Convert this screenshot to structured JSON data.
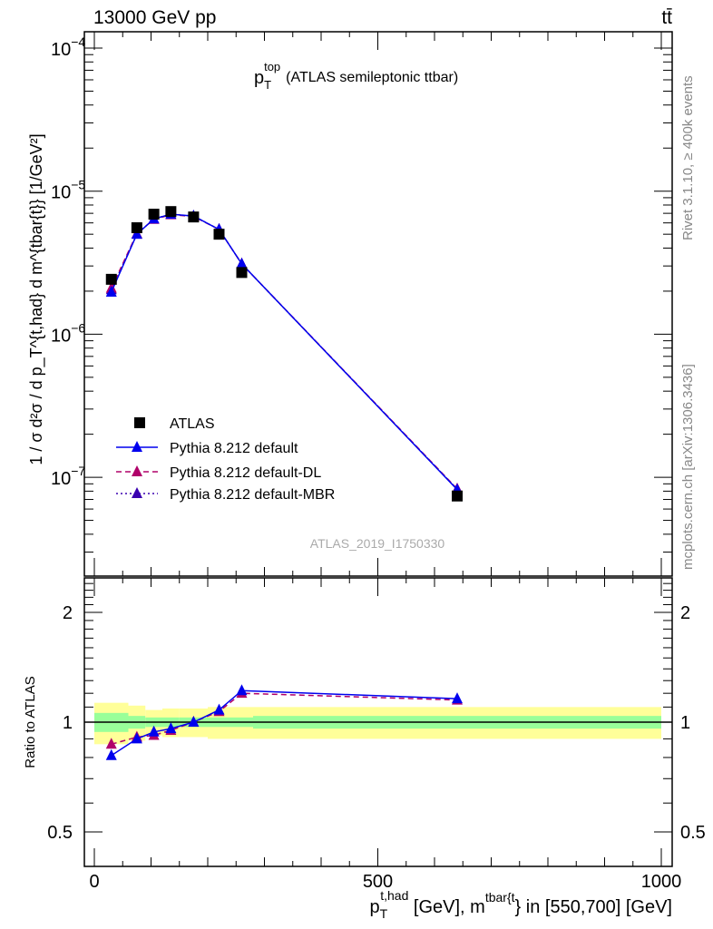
{
  "header": {
    "left": "13000 GeV pp",
    "right": "tt̄"
  },
  "side_labels": {
    "rivet": "Rivet 3.1.10, ≥ 400k events",
    "mcplots": "mcplots.cern.ch [arXiv:1306.3436]"
  },
  "chart_data": [
    {
      "type": "line",
      "title": "p_T^top (ATLAS semileptonic ttbar)",
      "title_main": "p",
      "title_sub": "T",
      "title_sup": "top",
      "title_rest": "(ATLAS semileptonic ttbar)",
      "ylabel": "1 / σ d²σ / d p_T^{t,had} d m^{tbar{t}} [1/GeV²]",
      "yscale": "log",
      "ylim": [
        2.2e-08,
        0.00013
      ],
      "xlim": [
        -40,
        1020
      ],
      "ytick_labels": [
        {
          "v": 0.0001,
          "m": "10",
          "e": "−4"
        },
        {
          "v": 1e-05,
          "m": "10",
          "e": "−5"
        },
        {
          "v": 1e-06,
          "m": "10",
          "e": "−6"
        },
        {
          "v": 1e-07,
          "m": "10",
          "e": "−7"
        }
      ],
      "watermark": "ATLAS_2019_I1750330",
      "legend_position": "middle-left",
      "x": [
        30,
        75,
        105,
        135,
        175,
        220,
        260,
        640
      ],
      "series": [
        {
          "name": "ATLAS",
          "color": "#000000",
          "marker": "square",
          "values": [
            2.42e-06,
            5.55e-06,
            6.9e-06,
            7.2e-06,
            6.6e-06,
            5e-06,
            2.7e-06,
            7.4e-08
          ]
        },
        {
          "name": "Pythia 8.212 default",
          "color": "#0000ee",
          "marker": "triangle",
          "line": "solid",
          "values": [
            1.97e-06,
            5e-06,
            6.4e-06,
            6.9e-06,
            6.7e-06,
            5.4e-06,
            3.1e-06,
            8.2e-08
          ]
        },
        {
          "name": "Pythia 8.212 default-DL",
          "color": "#b0006a",
          "marker": "triangle",
          "line": "dashed",
          "values": [
            2.1e-06,
            5.05e-06,
            6.35e-06,
            6.85e-06,
            6.65e-06,
            5.4e-06,
            3.1e-06,
            8.3e-08
          ]
        },
        {
          "name": "Pythia 8.212 default-MBR",
          "color": "#3a00b0",
          "marker": "triangle",
          "line": "dotted",
          "values": [
            2.05e-06,
            5e-06,
            6.4e-06,
            6.9e-06,
            6.7e-06,
            5.4e-06,
            3.1e-06,
            8.25e-08
          ]
        }
      ]
    },
    {
      "type": "line",
      "ylabel": "Ratio to ATLAS",
      "yscale": "log",
      "ylim": [
        0.4,
        2.5
      ],
      "xlim": [
        -40,
        1020
      ],
      "ytick_labels": [
        "0.5",
        "1",
        "2"
      ],
      "ytick_values": [
        0.5,
        1,
        2
      ],
      "xtick_labels": [
        "0",
        "500",
        "1000"
      ],
      "xtick_values": [
        0,
        500,
        1000
      ],
      "xlabel": "p_T^{t,had} [GeV], m^{tbar{t}} in [550,700] [GeV]",
      "xlabel_parts": {
        "p": "p",
        "sub": "T",
        "sup": "t,had",
        "mid": " [GeV], m",
        "sup2": "tbar{t",
        "rest": "} in [550,700] [GeV]"
      },
      "bin_edges": [
        0,
        60,
        90,
        120,
        150,
        200,
        240,
        280,
        1000
      ],
      "band_yellow_halfwidth": [
        0.13,
        0.11,
        0.08,
        0.09,
        0.09,
        0.1,
        0.1,
        0.1
      ],
      "band_green_halfwidth": [
        0.06,
        0.04,
        0.03,
        0.03,
        0.03,
        0.03,
        0.03,
        0.04
      ],
      "x": [
        30,
        75,
        105,
        135,
        175,
        220,
        260,
        640
      ],
      "series": [
        {
          "name": "Pythia 8.212 default",
          "color": "#0000ee",
          "line": "solid",
          "values": [
            0.81,
            0.9,
            0.94,
            0.96,
            1.0,
            1.08,
            1.22,
            1.16
          ],
          "errors": [
            0.02,
            0.02,
            0.02,
            0.02,
            0.01,
            0.02,
            0.02,
            0.03
          ]
        },
        {
          "name": "Pythia 8.212 default-DL",
          "color": "#b0006a",
          "line": "dashed",
          "values": [
            0.87,
            0.91,
            0.92,
            0.95,
            1.0,
            1.07,
            1.2,
            1.15
          ],
          "errors": [
            0.02,
            0.02,
            0.02,
            0.02,
            0.01,
            0.02,
            0.02,
            0.03
          ]
        }
      ]
    }
  ]
}
